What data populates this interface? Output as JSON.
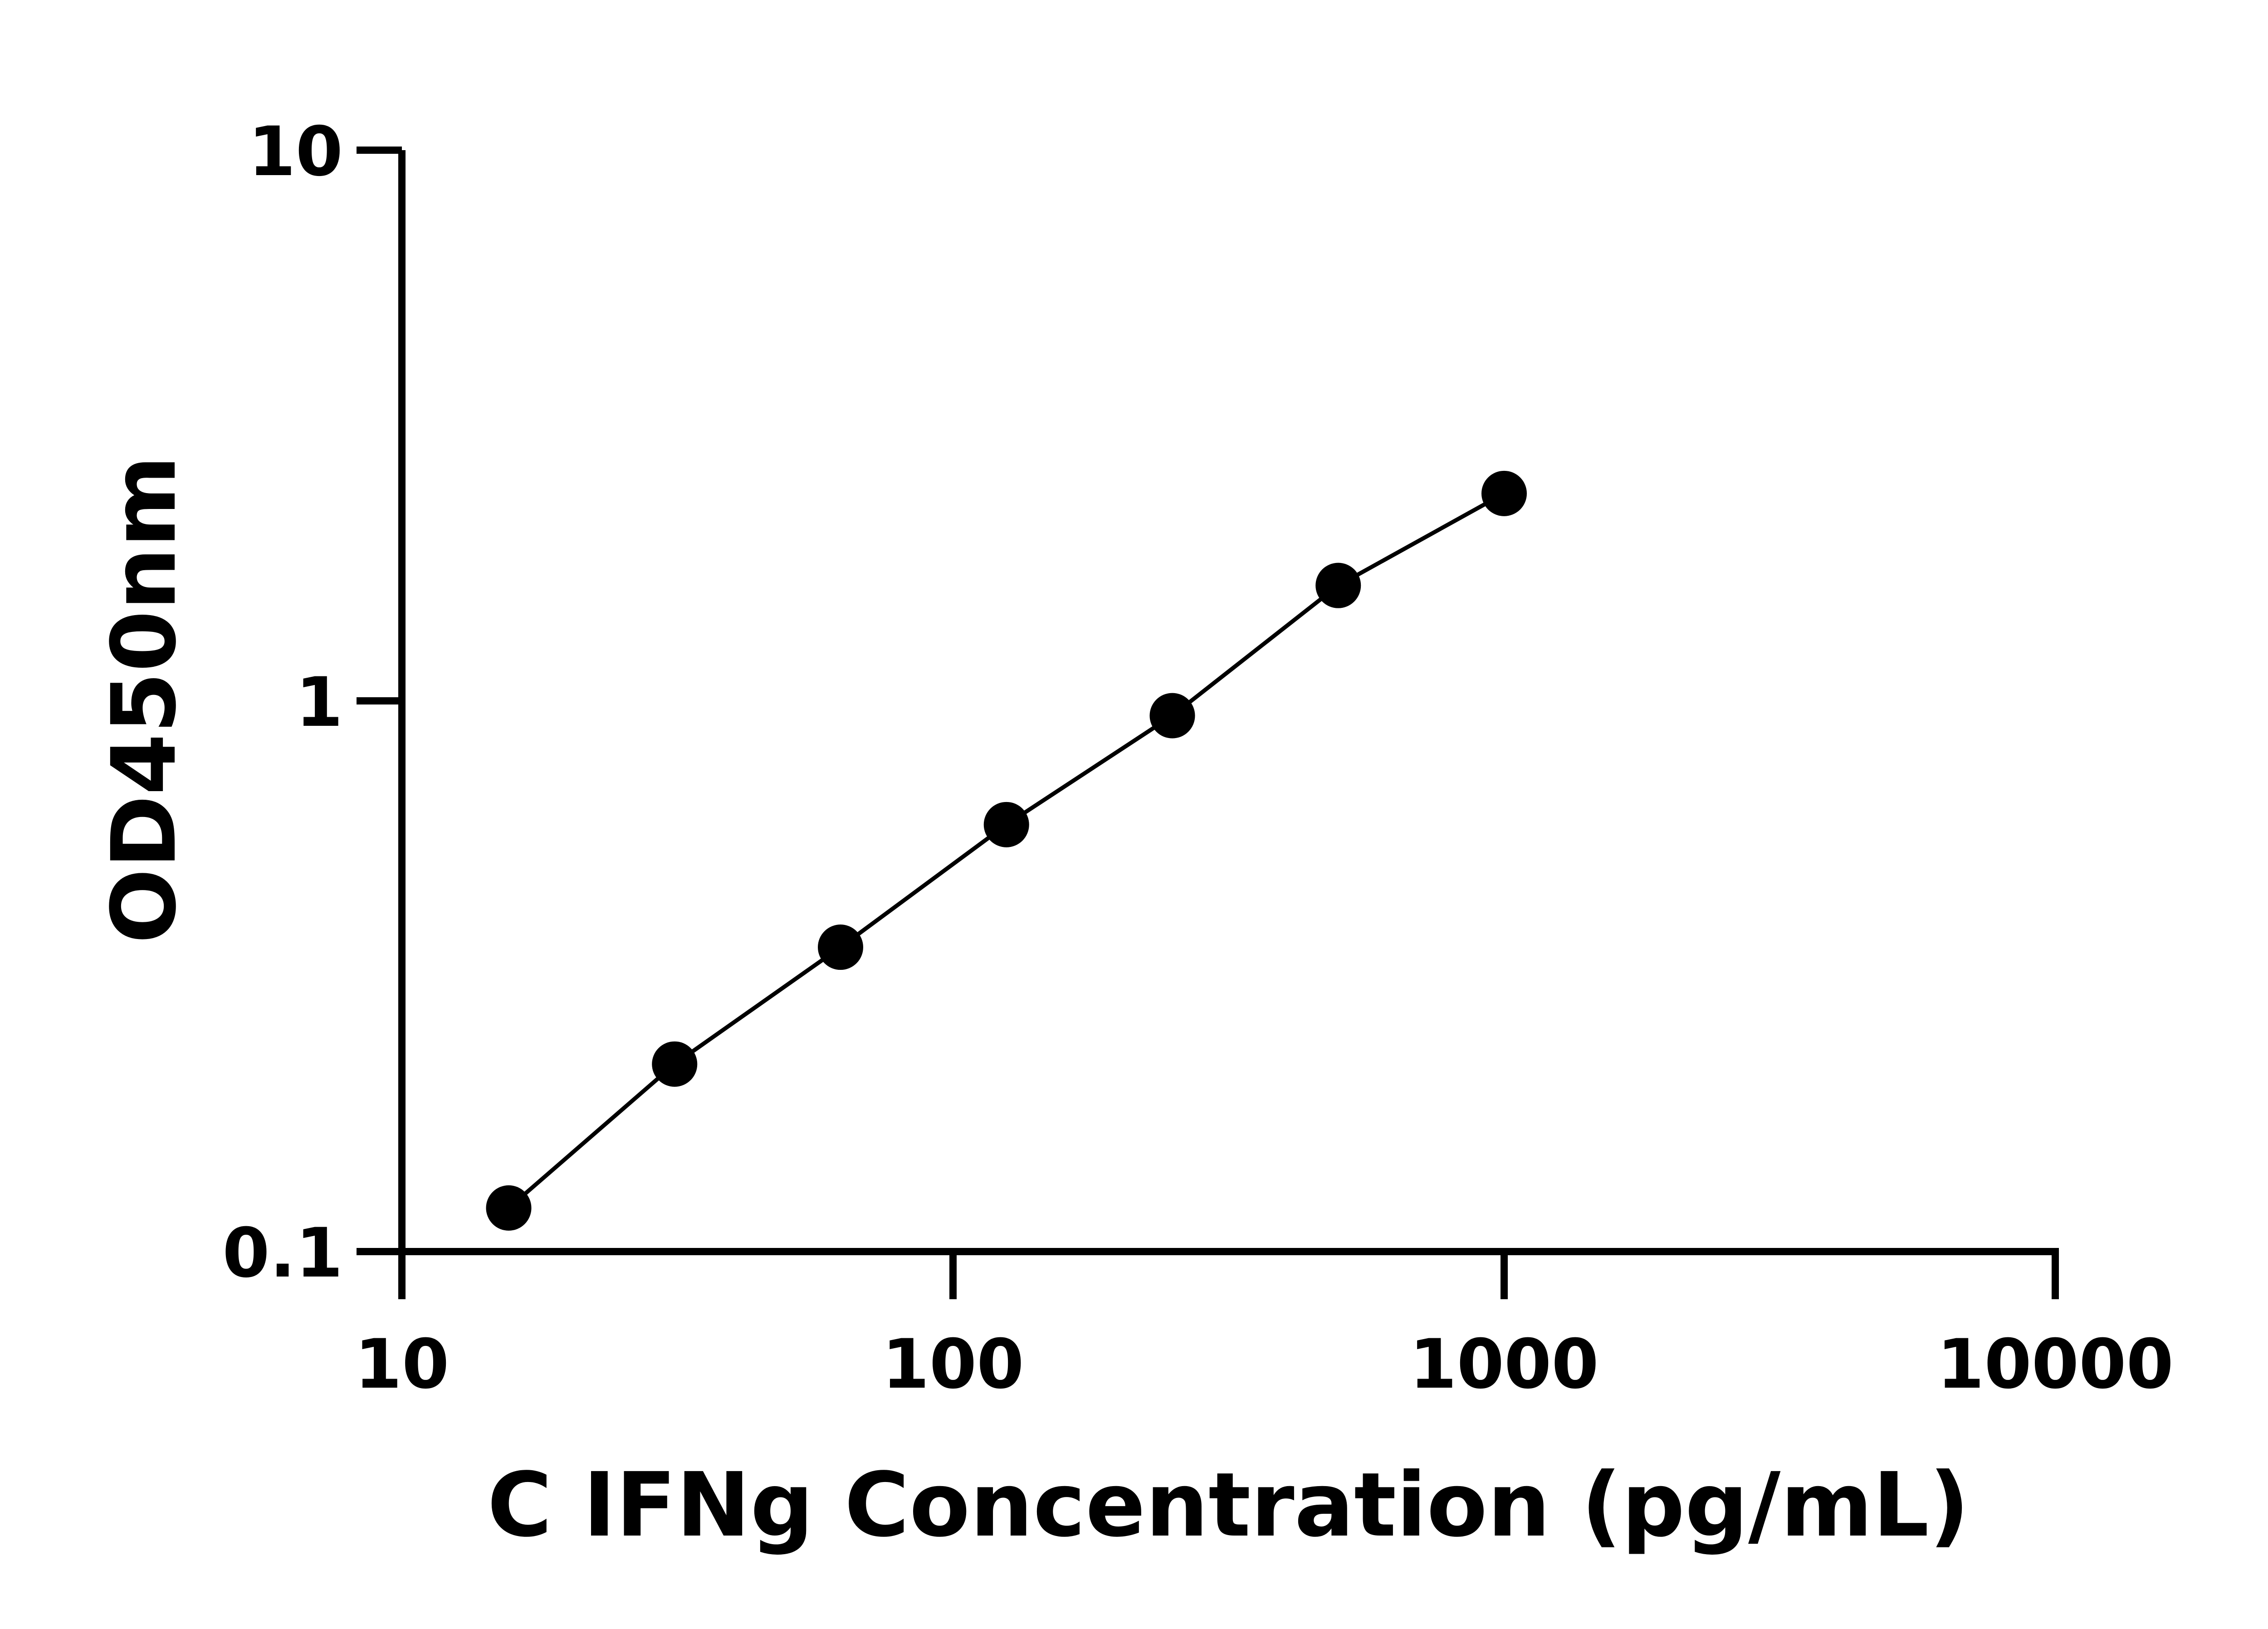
{
  "chart_data": {
    "type": "line",
    "title": "",
    "xlabel": "C IFNg Concentration (pg/mL)",
    "ylabel": "OD450nm",
    "x_scale": "log",
    "y_scale": "log",
    "xlim": [
      10,
      10000
    ],
    "ylim": [
      0.1,
      10
    ],
    "xticks": [
      10,
      100,
      1000,
      10000
    ],
    "xtick_labels": [
      "10",
      "100",
      "1000",
      "10000"
    ],
    "yticks": [
      0.1,
      1,
      10
    ],
    "ytick_labels": [
      "0.1",
      "1",
      "10"
    ],
    "grid": false,
    "legend": "none",
    "series": [
      {
        "x": [
          15.625,
          31.25,
          62.5,
          125,
          250,
          500,
          1000
        ],
        "y": [
          0.12,
          0.219,
          0.357,
          0.596,
          0.94,
          1.62,
          2.38
        ],
        "marker": "circle",
        "color": "#000000"
      }
    ]
  }
}
